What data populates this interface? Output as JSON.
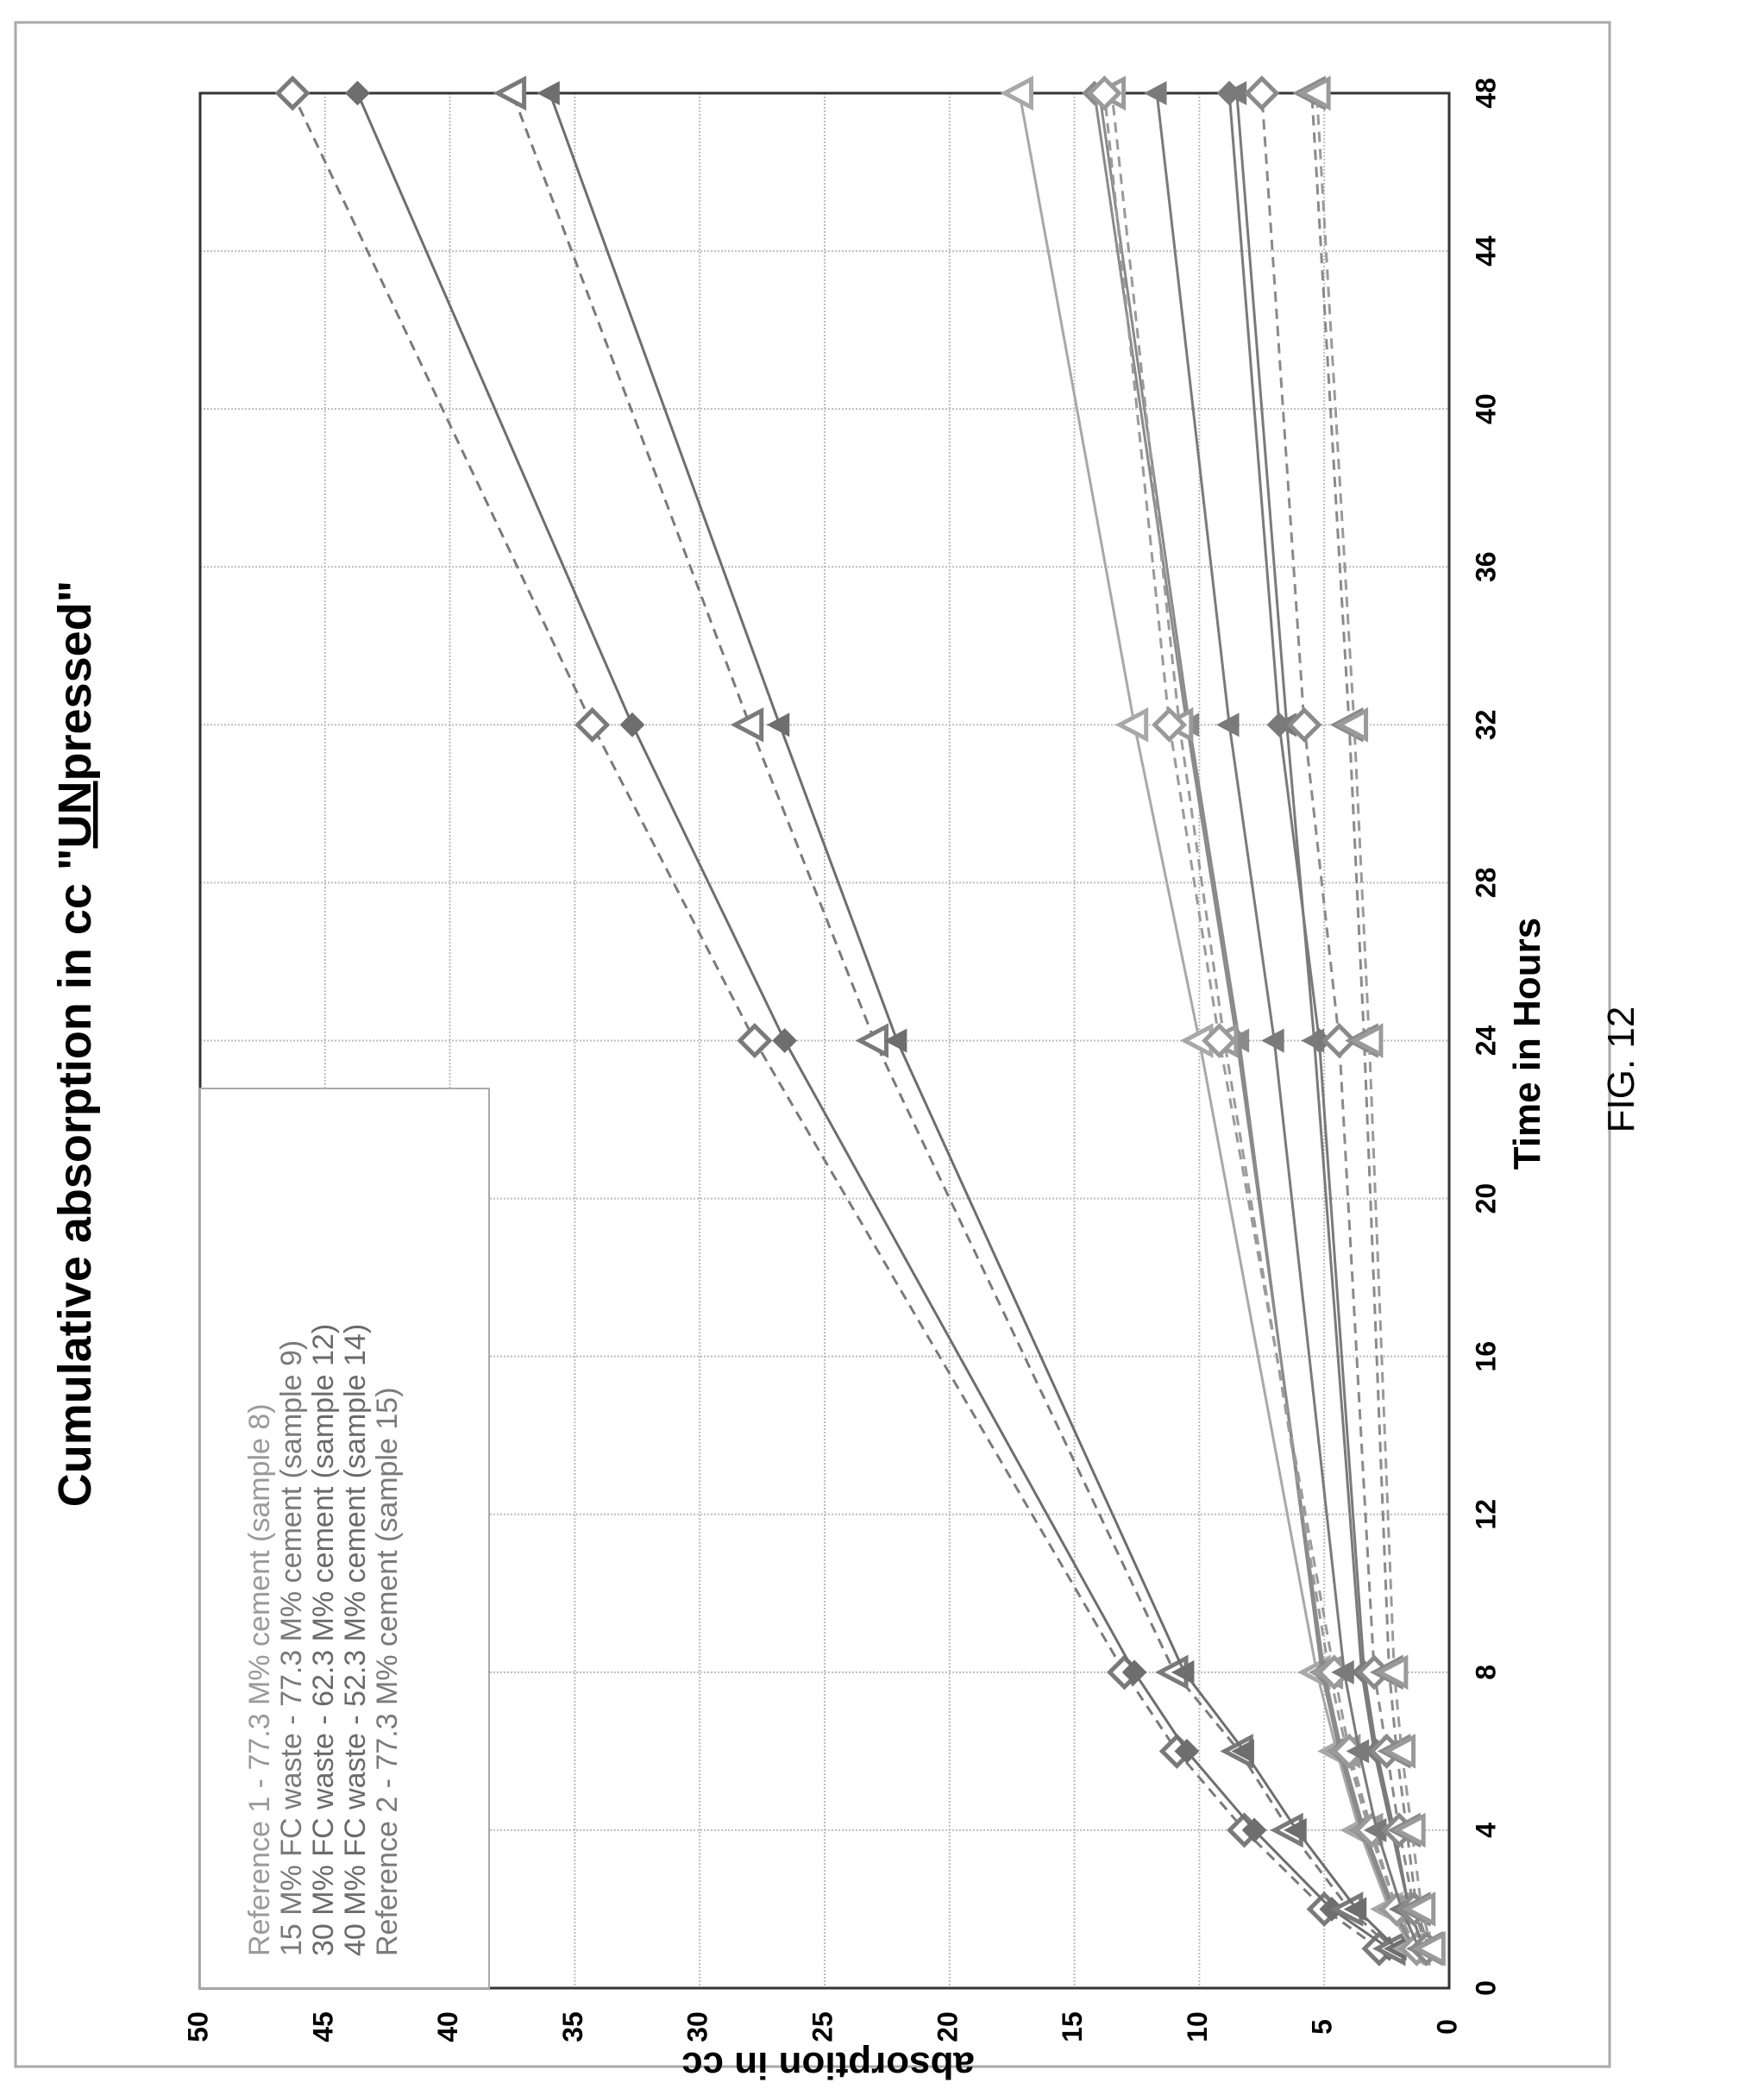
{
  "figure_label": "FIG. 12",
  "chart_data": {
    "type": "line",
    "title_parts": [
      "Cumulative absorption in cc \"",
      "UN",
      "pressed\""
    ],
    "xlabel": "Time in Hours",
    "ylabel": "absorption in cc",
    "xlim": [
      0,
      48
    ],
    "ylim": [
      0,
      50
    ],
    "xticks": [
      0,
      4,
      8,
      12,
      16,
      20,
      24,
      28,
      32,
      36,
      40,
      44,
      48
    ],
    "yticks": [
      0,
      5,
      10,
      15,
      20,
      25,
      30,
      35,
      40,
      45,
      50
    ],
    "grid": true,
    "legend_position": "top-left",
    "legend": [
      "Reference 1 - 77.3 M% cement (sample 8)",
      "15 M%  FC waste - 77.3 M% cement (sample 9)",
      "30 M%  FC waste - 62.3 M% cement (sample 12)",
      "40 M%  FC waste - 52.3 M% cement (sample 14)",
      "Reference 2 - 77.3 M% cement (sample 15)"
    ],
    "x": [
      1,
      2,
      4,
      6,
      8,
      24,
      32,
      48
    ],
    "series": [
      {
        "marker": "diamond-open",
        "line": "dashed",
        "color": "#7a7a7a",
        "values": [
          2.8,
          5.0,
          8.2,
          10.9,
          13.0,
          27.8,
          34.3,
          46.3
        ]
      },
      {
        "marker": "diamond-filled",
        "line": "solid",
        "color": "#6e6e6e",
        "values": [
          2.4,
          4.7,
          7.8,
          10.5,
          12.6,
          26.6,
          32.7,
          43.7
        ]
      },
      {
        "marker": "triangle-open",
        "line": "dashed",
        "color": "#7a7a7a",
        "values": [
          2.3,
          4.0,
          6.4,
          8.4,
          11.0,
          23.0,
          28.0,
          37.5
        ]
      },
      {
        "marker": "triangle-filled",
        "line": "solid",
        "color": "#6e6e6e",
        "values": [
          2.1,
          3.7,
          6.1,
          8.2,
          10.6,
          22.1,
          26.8,
          36.0
        ]
      },
      {
        "marker": "triangle-open",
        "line": "solid",
        "color": "#a8a8a8",
        "values": [
          1.5,
          2.4,
          3.6,
          4.5,
          5.3,
          10.0,
          12.6,
          17.2
        ]
      },
      {
        "marker": "triangle-filled",
        "line": "solid",
        "color": "#8a8a8a",
        "values": [
          1.4,
          2.3,
          3.5,
          4.4,
          5.1,
          8.4,
          10.4,
          14.0
        ]
      },
      {
        "marker": "diamond-filled",
        "line": "solid",
        "color": "#8a8a8a",
        "values": [
          1.4,
          2.2,
          3.4,
          4.3,
          5.0,
          8.5,
          10.5,
          14.2
        ]
      },
      {
        "marker": "triangle-open",
        "line": "dashed",
        "color": "#9a9a9a",
        "values": [
          1.3,
          2.1,
          3.2,
          4.1,
          4.8,
          9.0,
          10.8,
          13.5
        ]
      },
      {
        "marker": "diamond-open",
        "line": "dashed",
        "color": "#9a9a9a",
        "values": [
          1.3,
          2.1,
          3.1,
          4.0,
          4.6,
          9.2,
          11.2,
          13.8
        ]
      },
      {
        "marker": "triangle-filled",
        "line": "solid",
        "color": "#7a7a7a",
        "values": [
          1.2,
          1.9,
          2.9,
          3.6,
          4.2,
          7.0,
          8.8,
          11.7
        ]
      },
      {
        "marker": "triangle-filled",
        "line": "solid",
        "color": "#7a7a7a",
        "values": [
          1.0,
          1.6,
          2.3,
          3.0,
          3.5,
          5.4,
          6.5,
          8.5
        ]
      },
      {
        "marker": "diamond-filled",
        "line": "solid",
        "color": "#7a7a7a",
        "values": [
          1.0,
          1.6,
          2.2,
          2.9,
          3.4,
          5.2,
          6.8,
          8.8
        ]
      },
      {
        "marker": "diamond-open",
        "line": "dashed",
        "color": "#8a8a8a",
        "values": [
          0.9,
          1.4,
          2.0,
          2.5,
          3.0,
          4.4,
          5.8,
          7.5
        ]
      },
      {
        "marker": "triangle-open",
        "line": "dashed",
        "color": "#8a8a8a",
        "values": [
          0.8,
          1.3,
          1.7,
          2.1,
          2.4,
          3.4,
          4.0,
          5.5
        ]
      },
      {
        "marker": "triangle-open",
        "line": "dashed",
        "color": "#9a9a9a",
        "values": [
          0.7,
          1.1,
          1.5,
          1.9,
          2.2,
          3.2,
          3.8,
          5.3
        ]
      }
    ]
  }
}
